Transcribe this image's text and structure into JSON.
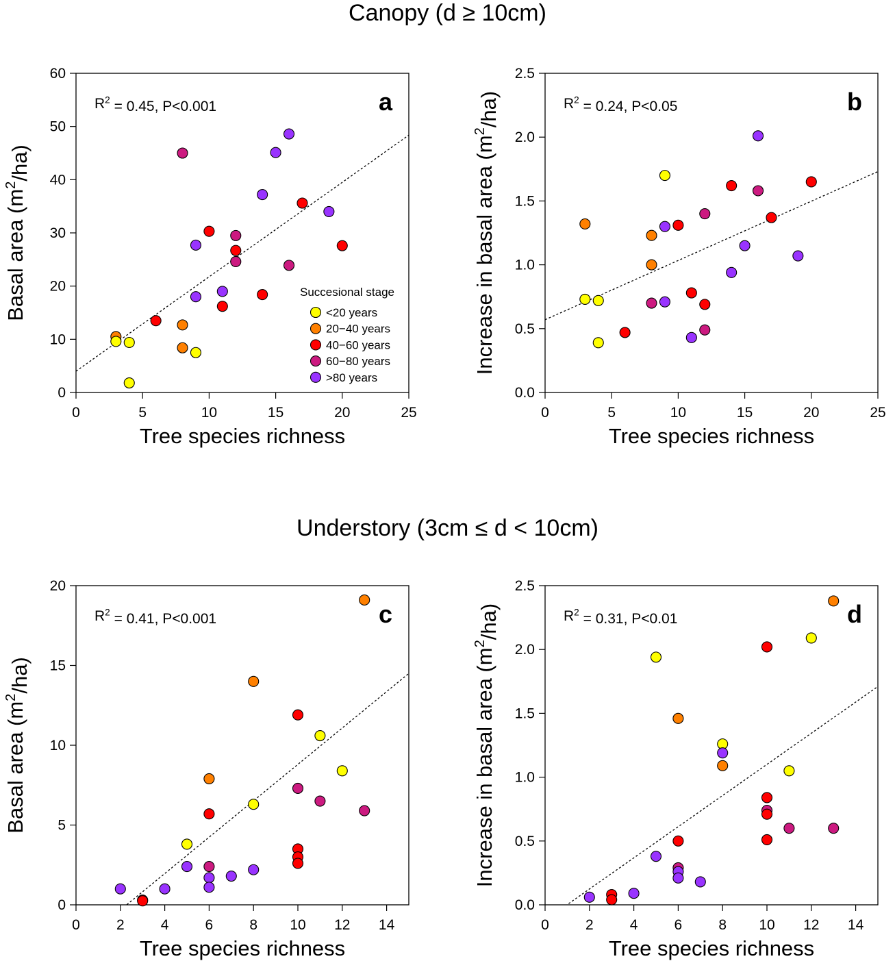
{
  "sections": {
    "canopy_title": "Canopy (d ≥ 10cm)",
    "understory_title": "Understory (3cm ≤ d < 10cm)"
  },
  "legend": {
    "title": "Succesional stage",
    "items": [
      {
        "label": "<20 years",
        "color": "#ffff00"
      },
      {
        "label": "20−40 years",
        "color": "#ff8000"
      },
      {
        "label": "40−60 years",
        "color": "#ff0000"
      },
      {
        "label": "60−80 years",
        "color": "#cc1a80"
      },
      {
        "label": ">80 years",
        "color": "#9933ff"
      }
    ]
  },
  "chart_data": [
    {
      "type": "scatter",
      "panel": "a",
      "stat": "R² = 0.45, P<0.001",
      "xlabel": "Tree species richness",
      "ylabel": "Basal area (m²/ha)",
      "xlim": [
        0,
        25
      ],
      "ylim": [
        0,
        60
      ],
      "xticks": [
        0,
        5,
        10,
        15,
        20,
        25
      ],
      "yticks": [
        0,
        10,
        20,
        30,
        40,
        50,
        60
      ],
      "fit": {
        "intercept": 4.0,
        "slope": 1.775
      },
      "legend": true,
      "points": [
        {
          "x": 3,
          "y": 10.5,
          "stage": 1
        },
        {
          "x": 3,
          "y": 9.6,
          "stage": 0
        },
        {
          "x": 4,
          "y": 9.4,
          "stage": 0
        },
        {
          "x": 4,
          "y": 1.8,
          "stage": 0
        },
        {
          "x": 6,
          "y": 13.5,
          "stage": 2
        },
        {
          "x": 8,
          "y": 45.0,
          "stage": 3
        },
        {
          "x": 8,
          "y": 12.7,
          "stage": 1
        },
        {
          "x": 8,
          "y": 8.4,
          "stage": 1
        },
        {
          "x": 9,
          "y": 27.7,
          "stage": 4
        },
        {
          "x": 9,
          "y": 18.0,
          "stage": 4
        },
        {
          "x": 9,
          "y": 7.5,
          "stage": 0
        },
        {
          "x": 10,
          "y": 30.3,
          "stage": 2
        },
        {
          "x": 11,
          "y": 19.0,
          "stage": 4
        },
        {
          "x": 11,
          "y": 16.2,
          "stage": 2
        },
        {
          "x": 12,
          "y": 29.5,
          "stage": 3
        },
        {
          "x": 12,
          "y": 26.7,
          "stage": 2
        },
        {
          "x": 12,
          "y": 24.6,
          "stage": 3
        },
        {
          "x": 14,
          "y": 37.2,
          "stage": 4
        },
        {
          "x": 14,
          "y": 18.4,
          "stage": 2
        },
        {
          "x": 15,
          "y": 45.1,
          "stage": 4
        },
        {
          "x": 16,
          "y": 48.6,
          "stage": 4
        },
        {
          "x": 16,
          "y": 23.9,
          "stage": 3
        },
        {
          "x": 17,
          "y": 35.6,
          "stage": 2
        },
        {
          "x": 19,
          "y": 34.0,
          "stage": 4
        },
        {
          "x": 20,
          "y": 27.6,
          "stage": 2
        }
      ]
    },
    {
      "type": "scatter",
      "panel": "b",
      "stat": "R² = 0.24, P<0.05",
      "xlabel": "Tree species richness",
      "ylabel": "Increase in basal area (m²/ha)",
      "xlim": [
        0,
        25
      ],
      "ylim": [
        0,
        2.5
      ],
      "xticks": [
        0,
        5,
        10,
        15,
        20,
        25
      ],
      "yticks": [
        0.0,
        0.5,
        1.0,
        1.5,
        2.0,
        2.5
      ],
      "fit": {
        "intercept": 0.57,
        "slope": 0.0464
      },
      "legend": false,
      "points": [
        {
          "x": 3,
          "y": 1.32,
          "stage": 1
        },
        {
          "x": 3,
          "y": 0.73,
          "stage": 0
        },
        {
          "x": 4,
          "y": 0.72,
          "stage": 0
        },
        {
          "x": 4,
          "y": 0.39,
          "stage": 0
        },
        {
          "x": 6,
          "y": 0.47,
          "stage": 2
        },
        {
          "x": 8,
          "y": 1.23,
          "stage": 1
        },
        {
          "x": 8,
          "y": 1.0,
          "stage": 1
        },
        {
          "x": 8,
          "y": 0.7,
          "stage": 3
        },
        {
          "x": 9,
          "y": 1.7,
          "stage": 0
        },
        {
          "x": 9,
          "y": 1.3,
          "stage": 4
        },
        {
          "x": 9,
          "y": 0.71,
          "stage": 4
        },
        {
          "x": 10,
          "y": 1.31,
          "stage": 2
        },
        {
          "x": 11,
          "y": 0.78,
          "stage": 2
        },
        {
          "x": 11,
          "y": 0.43,
          "stage": 4
        },
        {
          "x": 12,
          "y": 1.4,
          "stage": 3
        },
        {
          "x": 12,
          "y": 0.69,
          "stage": 2
        },
        {
          "x": 12,
          "y": 0.49,
          "stage": 3
        },
        {
          "x": 14,
          "y": 1.62,
          "stage": 2
        },
        {
          "x": 14,
          "y": 0.94,
          "stage": 4
        },
        {
          "x": 15,
          "y": 1.15,
          "stage": 4
        },
        {
          "x": 16,
          "y": 2.01,
          "stage": 4
        },
        {
          "x": 16,
          "y": 1.58,
          "stage": 3
        },
        {
          "x": 17,
          "y": 1.37,
          "stage": 2
        },
        {
          "x": 19,
          "y": 1.07,
          "stage": 4
        },
        {
          "x": 20,
          "y": 1.65,
          "stage": 2
        }
      ]
    },
    {
      "type": "scatter",
      "panel": "c",
      "stat": "R² = 0.41, P<0.001",
      "xlabel": "Tree species richness",
      "ylabel": "Basal area (m²/ha)",
      "xlim": [
        0,
        15
      ],
      "ylim": [
        0,
        20
      ],
      "xticks": [
        0,
        2,
        4,
        6,
        8,
        10,
        12,
        14
      ],
      "yticks": [
        0,
        5,
        10,
        15,
        20
      ],
      "fit": {
        "intercept": -2.6,
        "slope": 1.14
      },
      "legend": false,
      "points": [
        {
          "x": 2,
          "y": 1.0,
          "stage": 4
        },
        {
          "x": 3,
          "y": 0.3,
          "stage": 2
        },
        {
          "x": 3,
          "y": 0.25,
          "stage": 2
        },
        {
          "x": 4,
          "y": 1.0,
          "stage": 4
        },
        {
          "x": 5,
          "y": 3.8,
          "stage": 0
        },
        {
          "x": 5,
          "y": 2.4,
          "stage": 4
        },
        {
          "x": 6,
          "y": 7.9,
          "stage": 1
        },
        {
          "x": 6,
          "y": 5.7,
          "stage": 2
        },
        {
          "x": 6,
          "y": 2.4,
          "stage": 3
        },
        {
          "x": 6,
          "y": 1.7,
          "stage": 4
        },
        {
          "x": 6,
          "y": 1.1,
          "stage": 4
        },
        {
          "x": 7,
          "y": 1.8,
          "stage": 4
        },
        {
          "x": 8,
          "y": 14.0,
          "stage": 1
        },
        {
          "x": 8,
          "y": 6.3,
          "stage": 0
        },
        {
          "x": 8,
          "y": 2.2,
          "stage": 4
        },
        {
          "x": 10,
          "y": 11.9,
          "stage": 2
        },
        {
          "x": 10,
          "y": 7.3,
          "stage": 3
        },
        {
          "x": 10,
          "y": 3.5,
          "stage": 2
        },
        {
          "x": 10,
          "y": 3.0,
          "stage": 2
        },
        {
          "x": 10,
          "y": 2.6,
          "stage": 2
        },
        {
          "x": 11,
          "y": 10.6,
          "stage": 0
        },
        {
          "x": 11,
          "y": 6.5,
          "stage": 3
        },
        {
          "x": 12,
          "y": 8.4,
          "stage": 0
        },
        {
          "x": 13,
          "y": 19.1,
          "stage": 1
        },
        {
          "x": 13,
          "y": 5.9,
          "stage": 3
        }
      ]
    },
    {
      "type": "scatter",
      "panel": "d",
      "stat": "R² = 0.31, P<0.01",
      "xlabel": "Tree species richness",
      "ylabel": "Increase in basal area (m²/ha)",
      "xlim": [
        0,
        15
      ],
      "ylim": [
        0,
        2.5
      ],
      "xticks": [
        0,
        2,
        4,
        6,
        8,
        10,
        12,
        14
      ],
      "yticks": [
        0.0,
        0.5,
        1.0,
        1.5,
        2.0,
        2.5
      ],
      "fit": {
        "intercept": -0.12,
        "slope": 0.122
      },
      "legend": false,
      "points": [
        {
          "x": 2,
          "y": 0.06,
          "stage": 4
        },
        {
          "x": 3,
          "y": 0.08,
          "stage": 2
        },
        {
          "x": 3,
          "y": 0.04,
          "stage": 2
        },
        {
          "x": 4,
          "y": 0.09,
          "stage": 4
        },
        {
          "x": 5,
          "y": 1.94,
          "stage": 0
        },
        {
          "x": 5,
          "y": 0.38,
          "stage": 4
        },
        {
          "x": 6,
          "y": 1.46,
          "stage": 1
        },
        {
          "x": 6,
          "y": 0.5,
          "stage": 2
        },
        {
          "x": 6,
          "y": 0.29,
          "stage": 3
        },
        {
          "x": 6,
          "y": 0.26,
          "stage": 4
        },
        {
          "x": 6,
          "y": 0.21,
          "stage": 4
        },
        {
          "x": 7,
          "y": 0.18,
          "stage": 4
        },
        {
          "x": 8,
          "y": 1.26,
          "stage": 0
        },
        {
          "x": 8,
          "y": 1.19,
          "stage": 4
        },
        {
          "x": 8,
          "y": 1.09,
          "stage": 1
        },
        {
          "x": 10,
          "y": 2.02,
          "stage": 2
        },
        {
          "x": 10,
          "y": 0.84,
          "stage": 2
        },
        {
          "x": 10,
          "y": 0.74,
          "stage": 3
        },
        {
          "x": 10,
          "y": 0.71,
          "stage": 2
        },
        {
          "x": 10,
          "y": 0.51,
          "stage": 2
        },
        {
          "x": 11,
          "y": 1.05,
          "stage": 0
        },
        {
          "x": 11,
          "y": 0.6,
          "stage": 3
        },
        {
          "x": 12,
          "y": 2.09,
          "stage": 0
        },
        {
          "x": 13,
          "y": 2.38,
          "stage": 1
        },
        {
          "x": 13,
          "y": 0.6,
          "stage": 3
        }
      ]
    }
  ]
}
